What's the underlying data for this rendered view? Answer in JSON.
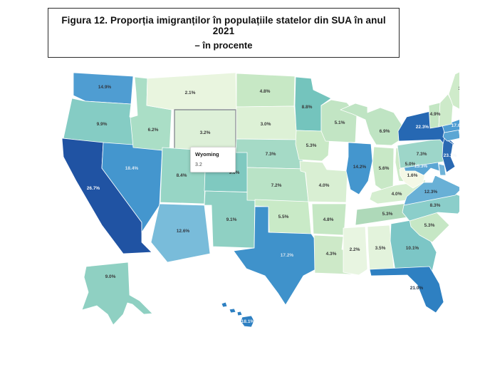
{
  "title": {
    "line1": "Figura 12. Proporția imigranților în populațiile statelor din SUA în anul 2021",
    "line2": "– în procente"
  },
  "tooltip": {
    "state": "Wyoming",
    "value": "3.2"
  },
  "map": {
    "highlight_border": "#8a8f94",
    "state_border": "#ffffff",
    "default_label_color": "#3a3a3a"
  },
  "chart_data": {
    "type": "choropleth",
    "title": "Proporția imigranților în populațiile statelor din SUA în anul 2021",
    "unit": "percent",
    "legend": "none",
    "color_scale": [
      "#f4f8e6",
      "#e8f5e0",
      "#cdeac8",
      "#aadec6",
      "#8fd0c3",
      "#7cc6c6",
      "#74b9d8",
      "#4f9dd2",
      "#3a8ec9",
      "#2668b3",
      "#2053a3"
    ],
    "states": [
      {
        "abbr": "WA",
        "name": "Washington",
        "label": "14.9%",
        "value": 14.9,
        "fill": "#4f9dd2",
        "label_color": "#333a44"
      },
      {
        "abbr": "OR",
        "name": "Oregon",
        "label": "9.9%",
        "value": 9.9,
        "fill": "#85ccc4",
        "label_color": "#3a3a3a"
      },
      {
        "abbr": "CA",
        "name": "California",
        "label": "26.7%",
        "value": 26.7,
        "fill": "#2053a3",
        "label_color": "#f2f6fa"
      },
      {
        "abbr": "NV",
        "name": "Nevada",
        "label": "18.4%",
        "value": 18.4,
        "fill": "#4496ce",
        "label_color": "#d9e6f2"
      },
      {
        "abbr": "ID",
        "name": "Idaho",
        "label": "6.2%",
        "value": 6.2,
        "fill": "#aadec6",
        "label_color": "#3a3a3a"
      },
      {
        "abbr": "MT",
        "name": "Montana",
        "label": "2.1%",
        "value": 2.1,
        "fill": "#e9f5df",
        "label_color": "#3a3a3a"
      },
      {
        "abbr": "WY",
        "name": "Wyoming",
        "label": "3.2%",
        "value": 3.2,
        "fill": "#ddf0d8",
        "label_color": "#3a3a3a",
        "highlighted": true
      },
      {
        "abbr": "UT",
        "name": "Utah",
        "label": "8.4%",
        "value": 8.4,
        "fill": "#97d5c5",
        "label_color": "#3a3a3a"
      },
      {
        "abbr": "CO",
        "name": "Colorado",
        "label": "9.6%",
        "value": 9.6,
        "fill": "#7fc9c0",
        "label_color": "#3a3a3a"
      },
      {
        "abbr": "AZ",
        "name": "Arizona",
        "label": "12.6%",
        "value": 12.6,
        "fill": "#79bcda",
        "label_color": "#333a44"
      },
      {
        "abbr": "NM",
        "name": "New Mexico",
        "label": "9.1%",
        "value": 9.1,
        "fill": "#8fd0c3",
        "label_color": "#3a3a3a"
      },
      {
        "abbr": "ND",
        "name": "North Dakota",
        "label": "4.8%",
        "value": 4.8,
        "fill": "#c7e8c5",
        "label_color": "#3a3a3a"
      },
      {
        "abbr": "SD",
        "name": "South Dakota",
        "label": "3.0%",
        "value": 3.0,
        "fill": "#ddf1d6",
        "label_color": "#3a3a3a"
      },
      {
        "abbr": "NE",
        "name": "Nebraska",
        "label": "7.3%",
        "value": 7.3,
        "fill": "#a5dac6",
        "label_color": "#3a3a3a"
      },
      {
        "abbr": "KS",
        "name": "Kansas",
        "label": "7.2%",
        "value": 7.2,
        "fill": "#b9e3c6",
        "label_color": "#3a3a3a"
      },
      {
        "abbr": "OK",
        "name": "Oklahoma",
        "label": "5.5%",
        "value": 5.5,
        "fill": "#c9eac7",
        "label_color": "#3a3a3a"
      },
      {
        "abbr": "TX",
        "name": "Texas",
        "label": "17.2%",
        "value": 17.2,
        "fill": "#3f92cb",
        "label_color": "#d3e2ef"
      },
      {
        "abbr": "MN",
        "name": "Minnesota",
        "label": "8.8%",
        "value": 8.8,
        "fill": "#74c4bd",
        "label_color": "#3a3a3a"
      },
      {
        "abbr": "IA",
        "name": "Iowa",
        "label": "5.3%",
        "value": 5.3,
        "fill": "#c9e9c6",
        "label_color": "#3a3a3a"
      },
      {
        "abbr": "MO",
        "name": "Missouri",
        "label": "4.0%",
        "value": 4.0,
        "fill": "#d9efd3",
        "label_color": "#3a3a3a"
      },
      {
        "abbr": "AR",
        "name": "Arkansas",
        "label": "4.8%",
        "value": 4.8,
        "fill": "#c5e7c4",
        "label_color": "#3a3a3a"
      },
      {
        "abbr": "LA",
        "name": "Louisiana",
        "label": "4.3%",
        "value": 4.3,
        "fill": "#cde9c8",
        "label_color": "#3a3a3a"
      },
      {
        "abbr": "WI",
        "name": "Wisconsin",
        "label": "5.1%",
        "value": 5.1,
        "fill": "#c2e5c4",
        "label_color": "#3a3a3a"
      },
      {
        "abbr": "IL",
        "name": "Illinois",
        "label": "14.2%",
        "value": 14.2,
        "fill": "#4496ce",
        "label_color": "#2e3640"
      },
      {
        "abbr": "IN",
        "name": "Indiana",
        "label": "5.6%",
        "value": 5.6,
        "fill": "#c8e8c6",
        "label_color": "#3a3a3a"
      },
      {
        "abbr": "MI",
        "name": "Michigan",
        "label": "6.9%",
        "value": 6.9,
        "fill": "#bfe4c3",
        "label_color": "#3a3a3a"
      },
      {
        "abbr": "OH",
        "name": "Ohio",
        "label": "5.0%",
        "value": 5.0,
        "fill": "#cdeac8",
        "label_color": "#3a3a3a"
      },
      {
        "abbr": "KY",
        "name": "Kentucky",
        "label": "4.0%",
        "value": 4.0,
        "fill": "#d5eed0",
        "label_color": "#3a3a3a"
      },
      {
        "abbr": "TN",
        "name": "Tennessee",
        "label": "5.3%",
        "value": 5.3,
        "fill": "#aed9b9",
        "label_color": "#3a3a3a"
      },
      {
        "abbr": "MS",
        "name": "Mississippi",
        "label": "2.2%",
        "value": 2.2,
        "fill": "#e8f5e1",
        "label_color": "#3a3a3a"
      },
      {
        "abbr": "AL",
        "name": "Alabama",
        "label": "3.5%",
        "value": 3.5,
        "fill": "#e3f3dc",
        "label_color": "#3a3a3a"
      },
      {
        "abbr": "GA",
        "name": "Georgia",
        "label": "10.1%",
        "value": 10.1,
        "fill": "#7cc6c6",
        "label_color": "#3a3a3a"
      },
      {
        "abbr": "SC",
        "name": "South Carolina",
        "label": "5.3%",
        "value": 5.3,
        "fill": "#c6e7c5",
        "label_color": "#3a3a3a"
      },
      {
        "abbr": "NC",
        "name": "North Carolina",
        "label": "8.3%",
        "value": 8.3,
        "fill": "#8bceca",
        "label_color": "#3a3a3a"
      },
      {
        "abbr": "VA",
        "name": "Virginia",
        "label": "12.3%",
        "value": 12.3,
        "fill": "#68b0d6",
        "label_color": "#2e3640"
      },
      {
        "abbr": "WV",
        "name": "West Virginia",
        "label": "1.6%",
        "value": 1.6,
        "fill": "#f4f8e6",
        "label_color": "#3a3a3a"
      },
      {
        "abbr": "MD",
        "name": "Maryland",
        "label": "15.3%",
        "value": 15.3,
        "fill": "#5ba6d4",
        "label_color": "#eef4fa"
      },
      {
        "abbr": "DE",
        "name": "Delaware",
        "label": "",
        "value": null,
        "fill": "#6fb3d9",
        "label_color": "#3a3a3a"
      },
      {
        "abbr": "PA",
        "name": "Pennsylvania",
        "label": "7.3%",
        "value": 7.3,
        "fill": "#9dd6c9",
        "label_color": "#3a3a3a"
      },
      {
        "abbr": "NY",
        "name": "New York",
        "label": "22.3%",
        "value": 22.3,
        "fill": "#2668b3",
        "label_color": "#f2f6fa"
      },
      {
        "abbr": "NJ",
        "name": "New Jersey",
        "label": "23.1%",
        "value": 23.1,
        "fill": "#2a69b2",
        "label_color": "#f2f6fa"
      },
      {
        "abbr": "CT",
        "name": "Connecticut",
        "label": "",
        "value": null,
        "fill": "#5ba6d4",
        "label_color": "#3a3a3a"
      },
      {
        "abbr": "RI",
        "name": "Rhode Island",
        "label": "",
        "value": null,
        "fill": "#6fb3d9",
        "label_color": "#3a3a3a"
      },
      {
        "abbr": "MA",
        "name": "Massachusetts",
        "label": "17.6%",
        "value": 17.6,
        "fill": "#4f9dd2",
        "label_color": "#eef4fa"
      },
      {
        "abbr": "VT",
        "name": "Vermont",
        "label": "4.9%",
        "value": 4.9,
        "fill": "#c3e6c3",
        "label_color": "#3a3a3a"
      },
      {
        "abbr": "NH",
        "name": "New Hampshire",
        "label": "",
        "value": null,
        "fill": "#cdeac9",
        "label_color": "#3a3a3a"
      },
      {
        "abbr": "ME",
        "name": "Maine",
        "label": "3.8%",
        "value": 3.8,
        "fill": "#cfebca",
        "label_color": "#3a3a3a"
      },
      {
        "abbr": "FL",
        "name": "Florida",
        "label": "21.0%",
        "value": 21.0,
        "fill": "#2e80c2",
        "label_color": "#1f3044"
      },
      {
        "abbr": "AK",
        "name": "Alaska",
        "label": "9.0%",
        "value": 9.0,
        "fill": "#8fd0c2",
        "label_color": "#3a3a3a"
      },
      {
        "abbr": "HI",
        "name": "Hawaii",
        "label": "18.1%",
        "value": 18.1,
        "fill": "#2e80c2",
        "label_color": "#e8eff6"
      }
    ]
  }
}
